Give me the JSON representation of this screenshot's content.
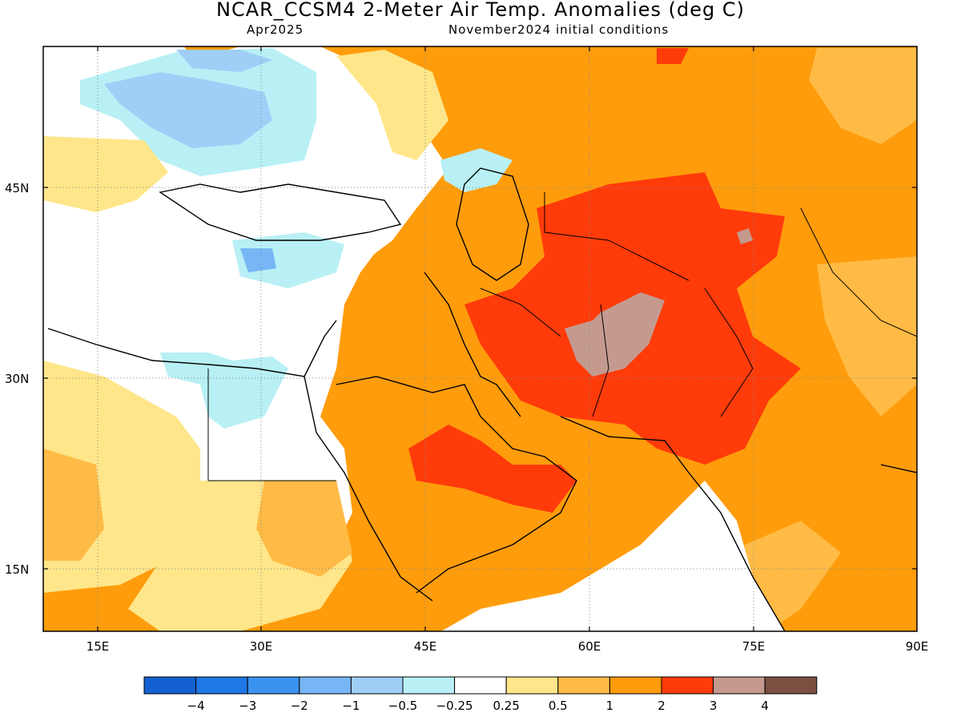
{
  "title": "NCAR_CCSM4 2-Meter Air Temp. Anomalies (deg C)",
  "valid_month": "Apr2025",
  "initial_conditions": "November2024 initial conditions",
  "lat_labels": [
    "45N",
    "30N",
    "15N"
  ],
  "lon_labels": [
    "15E",
    "30E",
    "45E",
    "60E",
    "75E",
    "90E"
  ],
  "colorbar": {
    "colors": [
      "#1560d0",
      "#1f78e6",
      "#3b93f0",
      "#77b6f5",
      "#9fcff7",
      "#b8f0f5",
      "#ffffff",
      "#ffe68a",
      "#ffbb45",
      "#ff9c0b",
      "#ff3b0a",
      "#c49a8f",
      "#7a5141"
    ],
    "tick_labels": [
      "-4",
      "-3",
      "-2",
      "-1",
      "-0.5",
      "-0.25",
      "0.25",
      "0.5",
      "1",
      "2",
      "3",
      "4"
    ]
  },
  "legend": {
    "colors": {
      "light_blue": "#b8f0f5",
      "blue": "#9fcff7",
      "mid_blue": "#77b6f5",
      "pale_yellow": "#ffe68a",
      "light_orange": "#ffbb45",
      "orange": "#ff9c0b",
      "red": "#ff3b0a",
      "tan": "#c49a8f"
    }
  }
}
